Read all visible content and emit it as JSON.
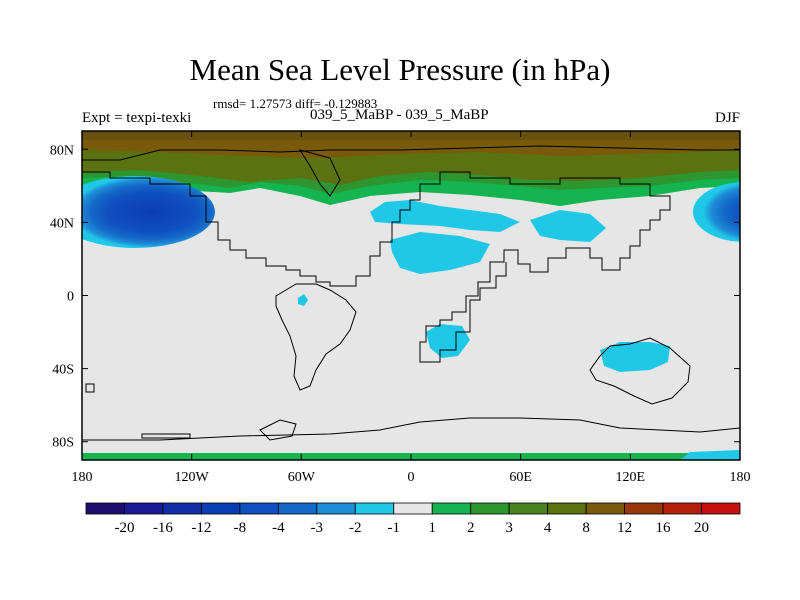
{
  "chart_data": {
    "type": "heatmap",
    "title": "Mean Sea Level Pressure (in hPa)",
    "stats": "rmsd= 1.27573 diff= -0.129883",
    "experiment_label": "Expt = texpi-texki",
    "run_label": "039_5_MaBP - 039_5_MaBP",
    "season": "DJF",
    "x_ticks": [
      {
        "value": -180,
        "label": "180"
      },
      {
        "value": -120,
        "label": "120W"
      },
      {
        "value": -60,
        "label": "60W"
      },
      {
        "value": 0,
        "label": "0"
      },
      {
        "value": 60,
        "label": "60E"
      },
      {
        "value": 120,
        "label": "120E"
      },
      {
        "value": 180,
        "label": "180"
      }
    ],
    "y_ticks": [
      {
        "value": 80,
        "label": "80N"
      },
      {
        "value": 40,
        "label": "40N"
      },
      {
        "value": 0,
        "label": "0"
      },
      {
        "value": -40,
        "label": "40S"
      },
      {
        "value": -80,
        "label": "80S"
      }
    ],
    "xlim": [
      -180,
      180
    ],
    "ylim": [
      -90,
      90
    ],
    "colorbar": {
      "levels": [
        "-20",
        "-16",
        "-12",
        "-8",
        "-4",
        "-3",
        "-2",
        "-1",
        "1",
        "2",
        "3",
        "4",
        "8",
        "12",
        "16",
        "20"
      ],
      "colors": [
        "#1e0f6e",
        "#1a1c96",
        "#0f2ea8",
        "#0a3cb4",
        "#0f50c0",
        "#1468c8",
        "#1e8cd7",
        "#1ec8e6",
        "#e6e6e6",
        "#14b450",
        "#2d9630",
        "#4a8220",
        "#5a7210",
        "#785a0a",
        "#96380a",
        "#b41e0a",
        "#c80f0f"
      ]
    },
    "regions": [
      {
        "lon": [
          -180,
          180
        ],
        "lat": [
          68,
          90
        ],
        "value": 8
      },
      {
        "lon": [
          -180,
          180
        ],
        "lat": [
          55,
          68
        ],
        "value": 4
      },
      {
        "lon": [
          -180,
          180
        ],
        "lat": [
          47,
          55
        ],
        "value": 2
      },
      {
        "lon": [
          -148,
          -148
        ],
        "lat": [
          42,
          42
        ],
        "value": -12
      },
      {
        "lon": [
          -25,
          -25
        ],
        "lat": [
          43,
          43
        ],
        "value": -2
      },
      {
        "lon": [
          10,
          10
        ],
        "lat": [
          25,
          25
        ],
        "value": -2
      },
      {
        "lon": [
          85,
          85
        ],
        "lat": [
          40,
          40
        ],
        "value": -2
      },
      {
        "lon": [
          178,
          178
        ],
        "lat": [
          42,
          42
        ],
        "value": -8
      },
      {
        "lon": [
          125,
          125
        ],
        "lat": [
          -32,
          -32
        ],
        "value": -2
      },
      {
        "lon": [
          28,
          28
        ],
        "lat": [
          -24,
          -24
        ],
        "value": -2
      }
    ]
  }
}
